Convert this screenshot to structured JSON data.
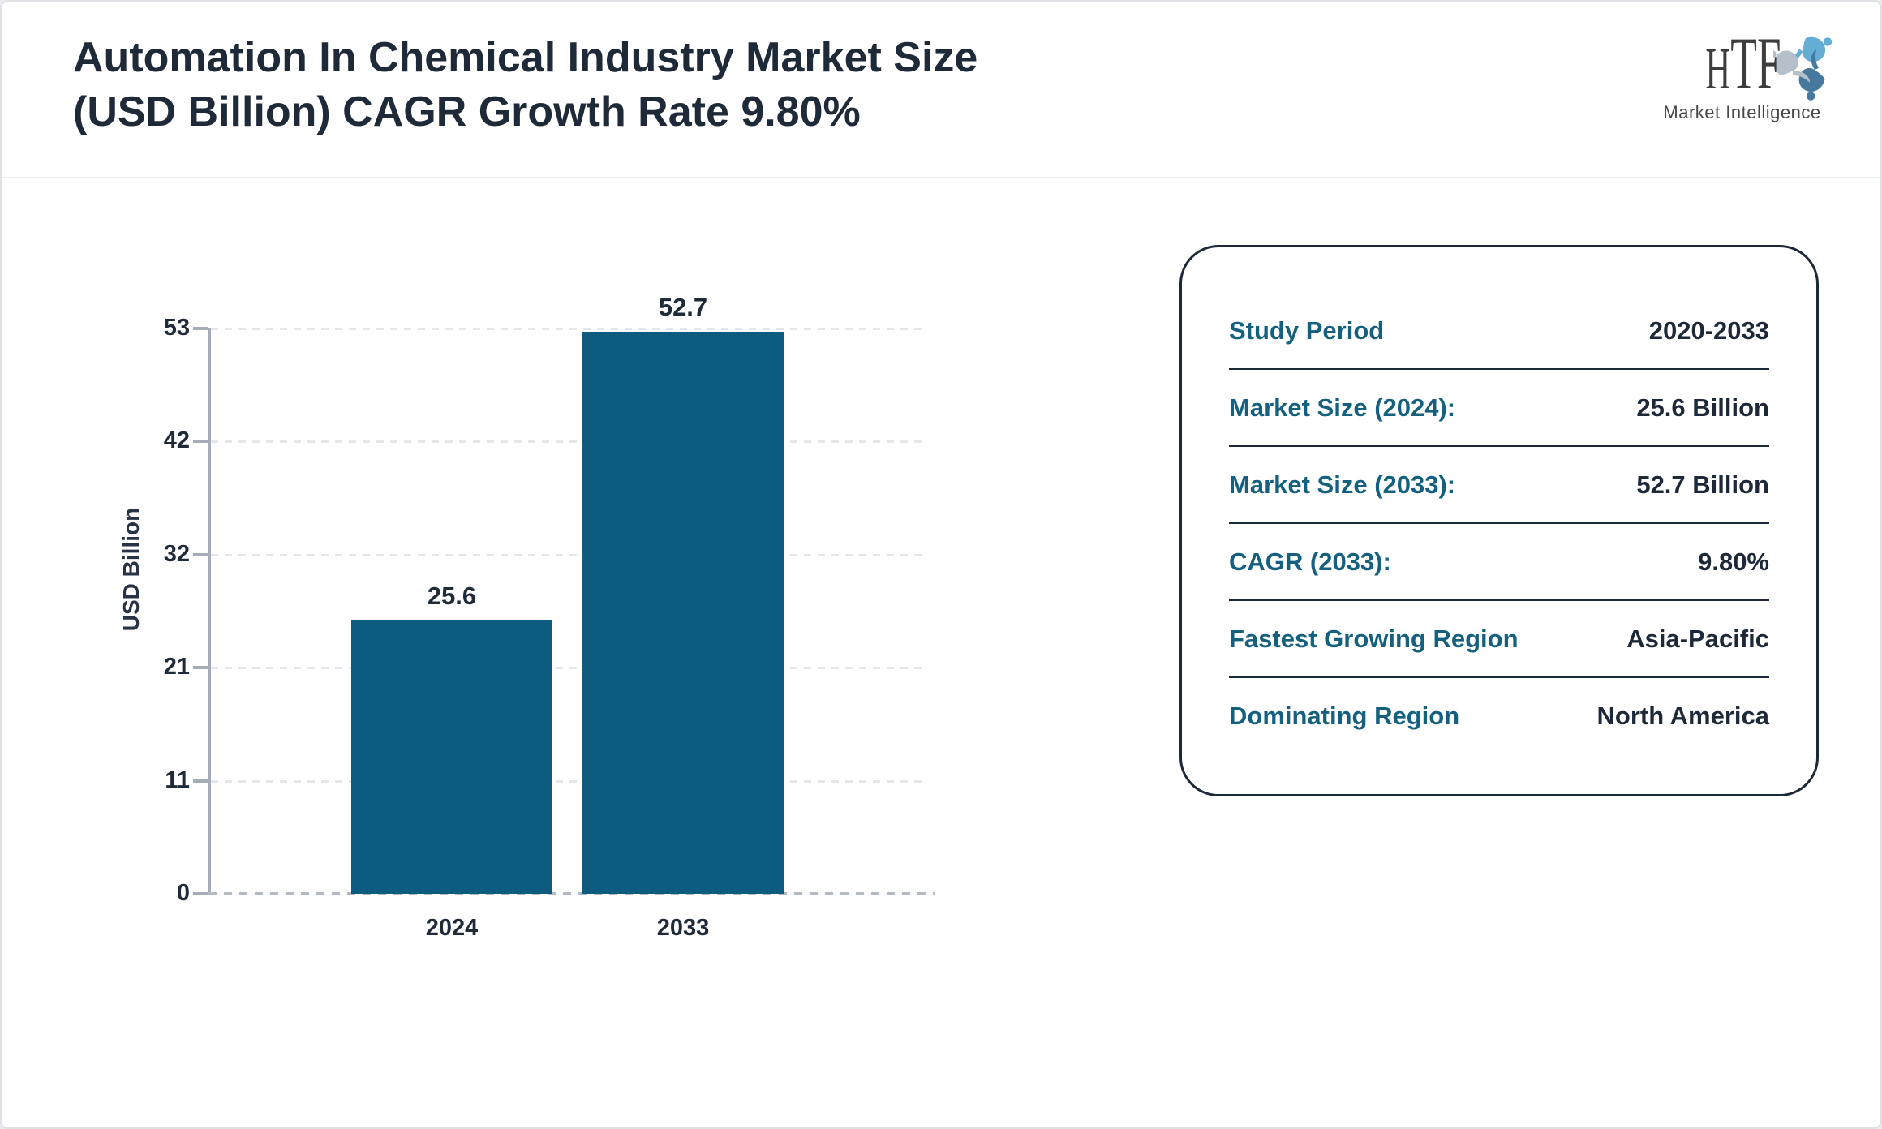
{
  "header": {
    "title_line1": "Automation In Chemical Industry Market Size",
    "title_line2": "(USD Billion) CAGR Growth Rate 9.80%"
  },
  "logo": {
    "text": "HTF",
    "subtext": "Market Intelligence"
  },
  "chart_data": {
    "type": "bar",
    "title": "Automation In Chemical Industry Market Size (USD Billion) CAGR Growth Rate 9.80%",
    "categories": [
      "2024",
      "2033"
    ],
    "values": [
      25.6,
      52.7
    ],
    "value_labels": [
      "25.6",
      "52.7"
    ],
    "xlabel": "",
    "ylabel": "USD Billion",
    "yticks": [
      0,
      11,
      21,
      32,
      42,
      53
    ],
    "ylim": [
      0,
      53
    ],
    "grid": true,
    "legend": false,
    "bar_color": "#0d5c80"
  },
  "info_panel": {
    "rows": [
      {
        "label": "Study Period",
        "value": "2020-2033"
      },
      {
        "label": "Market Size (2024):",
        "value": "25.6 Billion"
      },
      {
        "label": "Market Size (2033):",
        "value": "52.7 Billion"
      },
      {
        "label": "CAGR (2033):",
        "value": "9.80%"
      },
      {
        "label": "Fastest Growing Region",
        "value": "Asia-Pacific"
      },
      {
        "label": "Dominating Region",
        "value": "North America"
      }
    ]
  },
  "colors": {
    "accent_teal": "#15607f",
    "bar": "#0d5c80",
    "dark_text": "#1f2a38",
    "panel_border": "#1d2838",
    "axis_gray": "#a6acb5",
    "gridline_gray": "#e4e6ea"
  }
}
